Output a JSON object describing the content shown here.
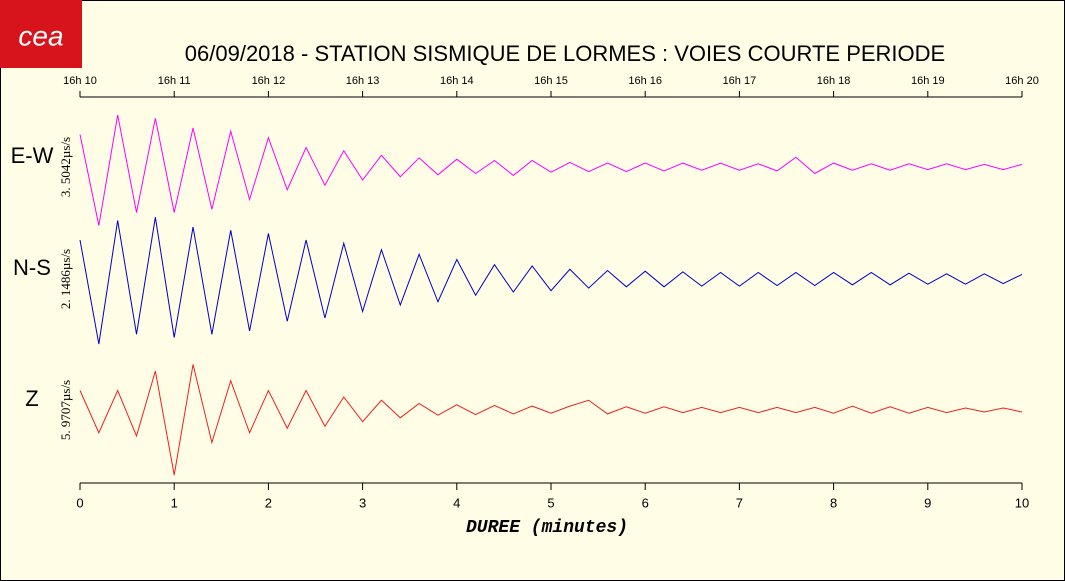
{
  "chart_data": {
    "type": "line",
    "logo": "cea",
    "title": "06/09/2018  -  STATION SISMIQUE DE LORMES : VOIES COURTE PERIODE",
    "x_label": "DUREE (minutes)",
    "xlim": [
      0,
      10
    ],
    "xticks": [
      0,
      1,
      2,
      3,
      4,
      5,
      6,
      7,
      8,
      9,
      10
    ],
    "x2ticks": [
      {
        "value": 0,
        "label": "16h 10"
      },
      {
        "value": 1,
        "label": "16h 11"
      },
      {
        "value": 2,
        "label": "16h 12"
      },
      {
        "value": 3,
        "label": "16h 13"
      },
      {
        "value": 4,
        "label": "16h 14"
      },
      {
        "value": 5,
        "label": "16h 15"
      },
      {
        "value": 6,
        "label": "16h 16"
      },
      {
        "value": 7,
        "label": "16h 17"
      },
      {
        "value": 8,
        "label": "16h 18"
      },
      {
        "value": 9,
        "label": "16h 19"
      },
      {
        "value": 10,
        "label": "16h 20"
      }
    ],
    "ylim": [
      -1,
      1
    ],
    "x": [
      0,
      0.2,
      0.4,
      0.6,
      0.8,
      1,
      1.2,
      1.4,
      1.6,
      1.8,
      2,
      2.2,
      2.4,
      2.6,
      2.8,
      3,
      3.2,
      3.4,
      3.6,
      3.8,
      4,
      4.2,
      4.4,
      4.6,
      4.8,
      5,
      5.2,
      5.4,
      5.6,
      5.8,
      6,
      6.2,
      6.4,
      6.6,
      6.8,
      7,
      7.2,
      7.4,
      7.6,
      7.8,
      8,
      8.2,
      8.4,
      8.6,
      8.8,
      9,
      9.2,
      9.4,
      9.6,
      9.8,
      10
    ],
    "series": [
      {
        "name": "E-W",
        "scale_label": "3. 5042µs/s",
        "color": "#ff00ff",
        "values": [
          0.5,
          -0.9,
          0.8,
          -0.7,
          0.75,
          -0.7,
          0.6,
          -0.65,
          0.55,
          -0.5,
          0.45,
          -0.35,
          0.3,
          -0.28,
          0.25,
          -0.2,
          0.18,
          -0.15,
          0.14,
          -0.12,
          0.12,
          -0.1,
          0.1,
          -0.13,
          0.1,
          -0.08,
          0.07,
          -0.07,
          0.06,
          -0.07,
          0.06,
          -0.06,
          0.06,
          -0.05,
          0.06,
          -0.05,
          0.05,
          -0.06,
          0.15,
          -0.1,
          0.06,
          -0.05,
          0.05,
          -0.05,
          0.05,
          -0.04,
          0.05,
          -0.04,
          0.04,
          -0.04,
          0.04
        ]
      },
      {
        "name": "N-S",
        "scale_label": "2. 1486µs/s",
        "color": "#0000cc",
        "values": [
          0.6,
          -1.0,
          0.9,
          -0.85,
          0.95,
          -0.9,
          0.8,
          -0.85,
          0.75,
          -0.8,
          0.7,
          -0.65,
          0.6,
          -0.6,
          0.55,
          -0.5,
          0.45,
          -0.4,
          0.38,
          -0.35,
          0.3,
          -0.25,
          0.22,
          -0.2,
          0.2,
          -0.18,
          0.15,
          -0.14,
          0.13,
          -0.12,
          0.12,
          -0.12,
          0.11,
          -0.11,
          0.1,
          -0.11,
          0.1,
          -0.1,
          0.1,
          -0.1,
          0.1,
          -0.09,
          0.1,
          -0.09,
          0.09,
          -0.08,
          0.08,
          -0.08,
          0.08,
          -0.07,
          0.07
        ]
      },
      {
        "name": "Z",
        "scale_label": "5. 9707µs/s",
        "color": "#ee2222",
        "values": [
          0.3,
          -0.35,
          0.3,
          -0.4,
          0.6,
          -1.0,
          0.7,
          -0.5,
          0.45,
          -0.35,
          0.3,
          -0.28,
          0.3,
          -0.25,
          0.2,
          -0.18,
          0.15,
          -0.12,
          0.1,
          -0.08,
          0.08,
          -0.07,
          0.07,
          -0.06,
          0.06,
          -0.05,
          0.06,
          0.15,
          -0.06,
          0.05,
          -0.05,
          0.05,
          -0.04,
          0.04,
          -0.04,
          0.04,
          -0.04,
          0.04,
          -0.04,
          0.04,
          -0.05,
          0.06,
          -0.05,
          0.05,
          -0.05,
          0.04,
          -0.04,
          0.03,
          -0.03,
          0.03,
          -0.03
        ]
      }
    ]
  }
}
